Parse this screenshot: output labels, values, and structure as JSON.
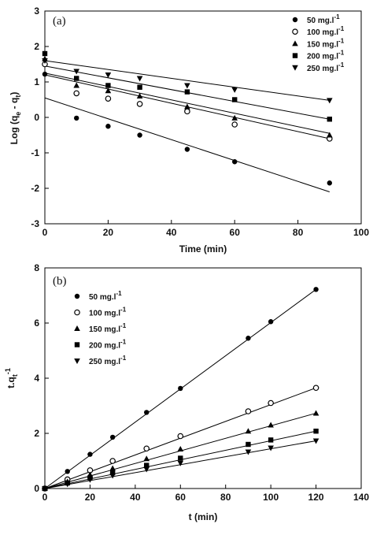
{
  "chart_data": [
    {
      "type": "scatter",
      "panel_label": "(a)",
      "xlabel": "Time (min)",
      "ylabel_main": "Log (q",
      "ylabel_sub1": "e",
      "ylabel_mid": " - q",
      "ylabel_sub2": "t",
      "ylabel_end": ")",
      "xlim": [
        0,
        100
      ],
      "ylim": [
        -3,
        3
      ],
      "xticks": [
        0,
        20,
        40,
        60,
        80,
        100
      ],
      "yticks": [
        -3,
        -2,
        -1,
        0,
        1,
        2,
        3
      ],
      "legend_position": "top-right",
      "series": [
        {
          "name": "50 mg.l",
          "marker": "circle-filled",
          "x": [
            0,
            10,
            20,
            30,
            45,
            60,
            90
          ],
          "y": [
            1.22,
            -0.02,
            -0.25,
            -0.5,
            -0.9,
            -1.25,
            -1.85
          ],
          "fit": [
            [
              0,
              0.55
            ],
            [
              90,
              -2.1
            ]
          ]
        },
        {
          "name": "100 mg.l",
          "marker": "circle-open",
          "x": [
            0,
            10,
            20,
            30,
            45,
            60,
            90
          ],
          "y": [
            1.5,
            0.68,
            0.53,
            0.38,
            0.17,
            -0.2,
            -0.6
          ],
          "fit": [
            [
              0,
              1.2
            ],
            [
              90,
              -0.6
            ]
          ]
        },
        {
          "name": "150 mg.l",
          "marker": "triangle-up",
          "x": [
            0,
            10,
            20,
            30,
            45,
            60,
            90
          ],
          "y": [
            1.65,
            0.9,
            0.75,
            0.6,
            0.3,
            -0.02,
            -0.5
          ],
          "fit": [
            [
              0,
              1.25
            ],
            [
              90,
              -0.45
            ]
          ]
        },
        {
          "name": "200 mg.l",
          "marker": "square",
          "x": [
            0,
            10,
            20,
            30,
            45,
            60,
            90
          ],
          "y": [
            1.8,
            1.1,
            0.9,
            0.85,
            0.72,
            0.5,
            -0.05
          ],
          "fit": [
            [
              0,
              1.45
            ],
            [
              90,
              -0.05
            ]
          ]
        },
        {
          "name": "250 mg.l",
          "marker": "triangle-down",
          "x": [
            0,
            10,
            20,
            30,
            45,
            60,
            90
          ],
          "y": [
            1.6,
            1.3,
            1.2,
            1.1,
            0.9,
            0.78,
            0.48
          ],
          "fit": [
            [
              0,
              1.6
            ],
            [
              90,
              0.48
            ]
          ]
        }
      ],
      "legend_superscript": "-1"
    },
    {
      "type": "scatter",
      "panel_label": "(b)",
      "xlabel": "t (min)",
      "ylabel_main": "t.q",
      "ylabel_sub": "t",
      "ylabel_sup": "-1",
      "xlim": [
        0,
        140
      ],
      "ylim": [
        0,
        8
      ],
      "xticks": [
        0,
        20,
        40,
        60,
        80,
        100,
        120,
        140
      ],
      "yticks": [
        0,
        2,
        4,
        6,
        8
      ],
      "legend_position": "top-left",
      "series": [
        {
          "name": "50 mg.l",
          "marker": "circle-filled",
          "x": [
            0,
            10,
            20,
            30,
            45,
            60,
            90,
            100,
            120
          ],
          "y": [
            0,
            0.62,
            1.24,
            1.86,
            2.76,
            3.63,
            5.45,
            6.05,
            7.22
          ],
          "fit": [
            [
              0,
              0
            ],
            [
              120,
              7.22
            ]
          ]
        },
        {
          "name": "100 mg.l",
          "marker": "circle-open",
          "x": [
            0,
            10,
            20,
            30,
            45,
            60,
            90,
            100,
            120
          ],
          "y": [
            0,
            0.33,
            0.66,
            1.0,
            1.45,
            1.9,
            2.8,
            3.1,
            3.65
          ],
          "fit": [
            [
              0,
              0
            ],
            [
              120,
              3.65
            ]
          ]
        },
        {
          "name": "150 mg.l",
          "marker": "triangle-up",
          "x": [
            0,
            10,
            20,
            30,
            45,
            60,
            90,
            100,
            120
          ],
          "y": [
            0,
            0.25,
            0.5,
            0.73,
            1.08,
            1.43,
            2.08,
            2.3,
            2.73
          ],
          "fit": [
            [
              0,
              0
            ],
            [
              120,
              2.73
            ]
          ]
        },
        {
          "name": "200 mg.l",
          "marker": "square",
          "x": [
            0,
            10,
            20,
            30,
            45,
            60,
            90,
            100,
            120
          ],
          "y": [
            0,
            0.2,
            0.39,
            0.57,
            0.84,
            1.1,
            1.6,
            1.76,
            2.08
          ],
          "fit": [
            [
              0,
              0
            ],
            [
              120,
              2.08
            ]
          ]
        },
        {
          "name": "250 mg.l",
          "marker": "triangle-down",
          "x": [
            0,
            10,
            20,
            30,
            45,
            60,
            90,
            100,
            120
          ],
          "y": [
            0,
            0.16,
            0.32,
            0.47,
            0.7,
            0.92,
            1.33,
            1.47,
            1.73
          ],
          "fit": [
            [
              0,
              0
            ],
            [
              120,
              1.73
            ]
          ]
        }
      ],
      "legend_superscript": "-1"
    }
  ]
}
